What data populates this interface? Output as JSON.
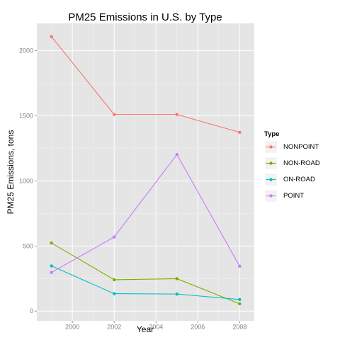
{
  "chart_data": {
    "type": "line",
    "title": "PM25 Emissions in U.S. by Type",
    "xlabel": "Year",
    "ylabel": "PM25 Emissions, tons",
    "x": [
      1999,
      2002,
      2005,
      2008
    ],
    "xlim": [
      1998.3,
      2008.7
    ],
    "ylim": [
      -75,
      2210
    ],
    "x_ticks": [
      2000,
      2002,
      2004,
      2006,
      2008
    ],
    "y_ticks": [
      0,
      500,
      1000,
      1500,
      2000
    ],
    "grid": true,
    "legend_title": "Type",
    "legend_position": "right",
    "series": [
      {
        "name": "NONPOINT",
        "color": "#F8766D",
        "values": [
          2108,
          1510,
          1510,
          1373
        ]
      },
      {
        "name": "NON-ROAD",
        "color": "#7CAE00",
        "values": [
          523,
          241,
          249,
          56
        ]
      },
      {
        "name": "ON-ROAD",
        "color": "#00BFC4",
        "values": [
          347,
          134,
          131,
          89
        ]
      },
      {
        "name": "POINT",
        "color": "#C77CFF",
        "values": [
          297,
          569,
          1203,
          345
        ]
      }
    ]
  }
}
